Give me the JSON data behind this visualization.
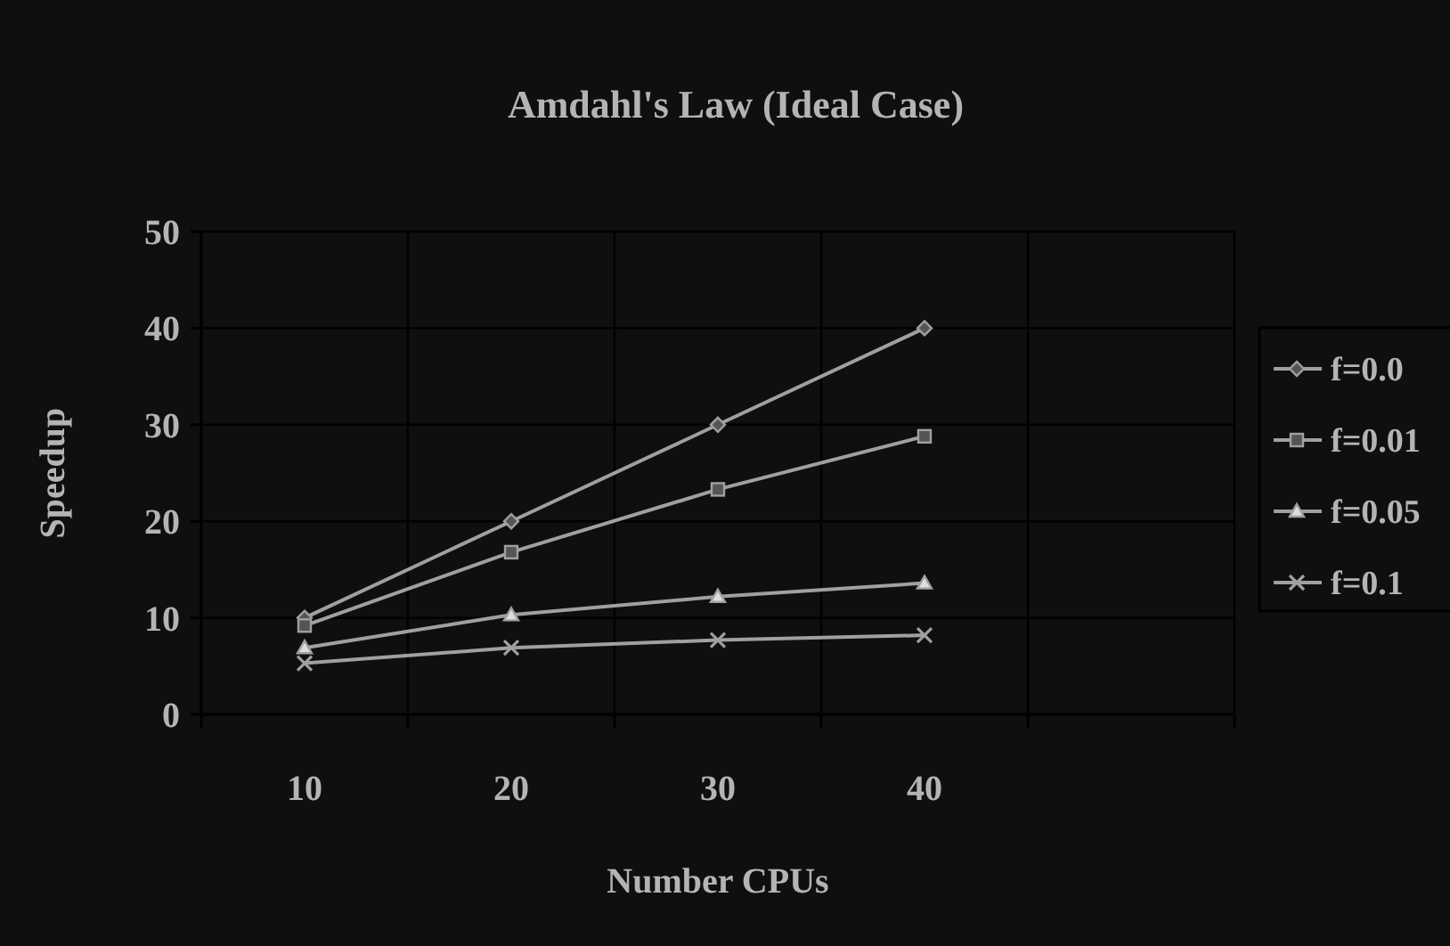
{
  "chart_data": {
    "type": "line",
    "title": "Amdahl's Law (Ideal Case)",
    "xlabel": "Number CPUs",
    "ylabel": "Speedup",
    "categories": [
      "10",
      "20",
      "30",
      "40",
      null
    ],
    "series": [
      {
        "name": "f=0.0",
        "color": "#a0a0a0",
        "marker": "diamond",
        "values": [
          10,
          20,
          30,
          40,
          null
        ]
      },
      {
        "name": "f=0.01",
        "color": "#a0a0a0",
        "marker": "square",
        "values": [
          9.2,
          16.8,
          23.3,
          28.8,
          null
        ]
      },
      {
        "name": "f=0.05",
        "color": "#a0a0a0",
        "marker": "triangle",
        "values": [
          6.9,
          10.3,
          12.2,
          13.6,
          null
        ]
      },
      {
        "name": "f=0.1",
        "color": "#a0a0a0",
        "marker": "cross",
        "values": [
          5.3,
          6.9,
          7.7,
          8.2,
          null
        ]
      }
    ],
    "ylim": [
      0,
      50
    ],
    "yticks": [
      0,
      10,
      20,
      30,
      40,
      50
    ],
    "grid": true,
    "legend": "right",
    "line_style": "solid"
  }
}
